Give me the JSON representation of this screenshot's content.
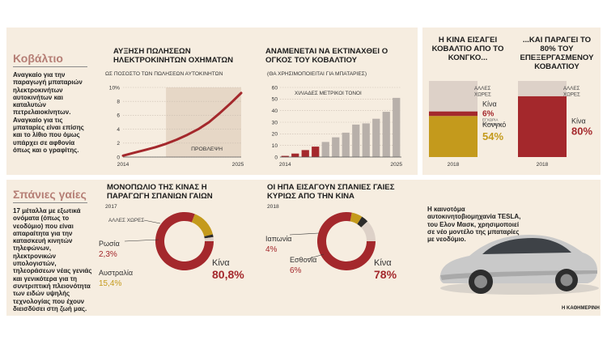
{
  "cobalt": {
    "title": "Κοβάλτιο",
    "text": "Αναγκαίο για την παραγωγή μπαταριών ηλεκτροκινήτων αυτοκινήτων και καταλυτών πετρελαιοκίνητων. Αναγκαίο για τις μπαταρίες είναι επίσης και το λίθιο που όμως υπάρχει σε αφθονία όπως και ο γραφίτης."
  },
  "rare": {
    "title": "Σπάνιες γαίες",
    "text": "17 μέταλλα με εξωτικά ονόματα (όπως το νεοδύμιο) που είναι απαραίτητα για την κατασκευή κινητών τηλεφώνων, ηλεκτρονικών υπολογιστών, τηλεοράσεων νέας γενιάς και γενικότερα για τη συντριπτική πλειονότητα των ειδών υψηλής τεχνολογίας που έχουν διεισδύσει στη ζωή μας."
  },
  "car_caption": "Η καινοτόμα αυτοκινητοβιομηχανία TESLA, του Ελον Μασκ, χρησιμοποιεί σε νέο μοντέλο της μπαταρίες με νεοδύμιο.",
  "credit": "Η ΚΑΘΗΜΕΡΙΝΗ",
  "colors": {
    "panel": "#f6ede0",
    "red": "#a4282c",
    "gold": "#c49a1c",
    "light": "#ddd1c8",
    "gray": "#b8b0aa",
    "dark": "#2b2b2b",
    "heading": "#b57e75"
  },
  "chart_data": [
    {
      "type": "line",
      "title": "ΑΥΞΗΣΗ ΠΩΛΗΣΕΩΝ ΗΛΕΚΤΡΟΚΙΝΗΤΩΝ ΟΧΗΜΑΤΩΝ",
      "subtitle": "ΩΣ ΠΟΣΟΣΤΟ ΤΩΝ ΠΩΛΗΣΕΩΝ ΑΥΤΟΚΙΝΗΤΩΝ",
      "x_start": "2014",
      "x_end": "2025",
      "forecast_label": "ΠΡΟΒΛΕΨΗ",
      "forecast_from": 2018,
      "yticks": [
        "10%",
        "8",
        "6",
        "4",
        "2",
        "0"
      ],
      "ylim": [
        0,
        10
      ],
      "x": [
        2014,
        2015,
        2016,
        2017,
        2018,
        2019,
        2020,
        2021,
        2022,
        2023,
        2024,
        2025
      ],
      "values": [
        0.2,
        0.6,
        1.0,
        1.4,
        1.9,
        2.5,
        3.2,
        4.0,
        5.0,
        6.3,
        7.7,
        9.2
      ],
      "grid": true
    },
    {
      "type": "bar",
      "title": "ΑΝΑΜΕΝΕΤΑΙ ΝΑ ΕΚΤΙΝΑΧΘΕΙ Ο ΟΓΚΟΣ ΤΟΥ ΚΟΒΑΛΤΙΟΥ",
      "subtitle": "(ΘΑ ΧΡΗΣΙΜΟΠΟΙΕΙΤΑΙ ΓΙΑ ΜΠΑΤΑΡΙΕΣ)",
      "unit_label": "ΧΙΛΙΑΔΕΣ ΜΕΤΡΙΚΟΙ ΤΟΝΟΙ",
      "x_start": "2014",
      "x_end": "2025",
      "yticks": [
        "60",
        "50",
        "40",
        "30",
        "20",
        "10",
        "0"
      ],
      "ylim": [
        0,
        60
      ],
      "x": [
        2014,
        2015,
        2016,
        2017,
        2018,
        2019,
        2020,
        2021,
        2022,
        2023,
        2024,
        2025
      ],
      "values": [
        1,
        3,
        6,
        9,
        13,
        17,
        21,
        28,
        29,
        33,
        39,
        51
      ],
      "highlighted_count": 4,
      "grid": true
    },
    {
      "type": "bar",
      "title": "Η ΚΙΝΑ ΕΙΣΑΓΕΙ ΚΟΒΑΛΤΙΟ ΑΠΟ ΤΟ ΚΟΝΓΚΟ...",
      "category": "2018",
      "series": [
        {
          "name": "Κονγκό",
          "value": 54,
          "label": "54%"
        },
        {
          "name": "Κίνα",
          "value": 6,
          "label": "6%",
          "note": "ΕΓΧΩΡΙΑ ΠΑΡΑΓΩΓΗ"
        },
        {
          "name": "ΑΛΛΕΣ ΧΩΡΕΣ",
          "value": 40
        }
      ]
    },
    {
      "type": "bar",
      "title": "...ΚΑΙ ΠΑΡΑΓΕΙ ΤΟ 80% ΤΟΥ ΕΠΕΞΕΡΓΑΣΜΕΝΟΥ ΚΟΒΑΛΤΙΟΥ",
      "category": "2018",
      "series": [
        {
          "name": "Κίνα",
          "value": 80,
          "label": "80%"
        },
        {
          "name": "ΑΛΛΕΣ ΧΩΡΕΣ",
          "value": 20
        }
      ]
    },
    {
      "type": "pie",
      "title": "ΜΟΝΟΠΩΛΙΟ ΤΗΣ ΚΙΝΑΣ Η ΠΑΡΑΓΩΓΗ ΣΠΑΝΙΩΝ ΓΑΙΩΝ",
      "year": "2017",
      "slices": [
        {
          "name": "Κίνα",
          "value": 80.8,
          "label": "80,8%"
        },
        {
          "name": "Αυστραλία",
          "value": 15.4,
          "label": "15,4%"
        },
        {
          "name": "ΑΛΛΕΣ ΧΩΡΕΣ",
          "value": 1.5
        },
        {
          "name": "Ρωσία",
          "value": 2.3,
          "label": "2,3%"
        }
      ]
    },
    {
      "type": "pie",
      "title": "ΟΙ ΗΠΑ ΕΙΣΑΓΟΥΝ ΣΠΑΝΙΕΣ ΓΑΙΕΣ ΚΥΡΙΩΣ ΑΠΟ ΤΗΝ ΚΙΝΑ",
      "year": "2018",
      "slices": [
        {
          "name": "Κίνα",
          "value": 78,
          "label": "78%"
        },
        {
          "name": "Εσθονία",
          "value": 6,
          "label": "6%"
        },
        {
          "name": "Ιαπωνία",
          "value": 4,
          "label": "4%"
        },
        {
          "name": "ΑΛΛΕΣ ΧΩΡΕΣ",
          "value": 12
        }
      ]
    }
  ]
}
